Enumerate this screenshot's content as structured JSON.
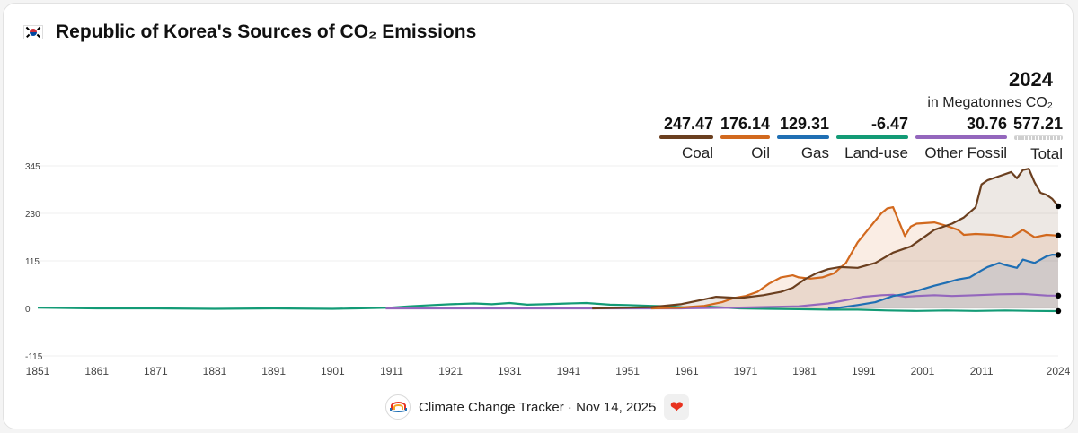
{
  "header": {
    "title": "Republic of Korea's Sources of CO₂ Emissions",
    "flag_icon": "south-korea-flag-icon"
  },
  "legend": {
    "year": "2024",
    "unit": "in Megatonnes CO₂",
    "items": [
      {
        "name": "Coal",
        "value": "247.47",
        "color": "#6b3f1f"
      },
      {
        "name": "Oil",
        "value": "176.14",
        "color": "#d2691e"
      },
      {
        "name": "Gas",
        "value": "129.31",
        "color": "#1f6fb4"
      },
      {
        "name": "Land-use",
        "value": "-6.47",
        "color": "#139b76"
      },
      {
        "name": "Other Fossil",
        "value": "30.76",
        "color": "#9467bd"
      },
      {
        "name": "Total",
        "value": "577.21",
        "color": "#cccccc"
      }
    ]
  },
  "footer": {
    "text": "Climate Change Tracker · Nov 14, 2025",
    "logo_icon": "climate-change-tracker-logo-icon",
    "heart_icon": "heart-icon",
    "heart_glyph": "❤"
  },
  "chart_data": {
    "type": "area",
    "title": "Republic of Korea's Sources of CO₂ Emissions",
    "ylabel": "",
    "xlabel": "",
    "xlim": [
      1851,
      2024
    ],
    "ylim": [
      -115,
      345
    ],
    "yticks": [
      -115,
      0,
      115,
      230,
      345
    ],
    "xticks": [
      1851,
      1861,
      1871,
      1881,
      1891,
      1901,
      1911,
      1921,
      1931,
      1941,
      1951,
      1961,
      1971,
      1981,
      1991,
      2001,
      2011,
      2024
    ],
    "series": [
      {
        "name": "Coal",
        "color": "#6b3f1f",
        "fill": true,
        "points": [
          [
            1945,
            0
          ],
          [
            1955,
            3
          ],
          [
            1960,
            10
          ],
          [
            1964,
            22
          ],
          [
            1966,
            28
          ],
          [
            1970,
            25
          ],
          [
            1974,
            32
          ],
          [
            1977,
            40
          ],
          [
            1979,
            50
          ],
          [
            1981,
            70
          ],
          [
            1983,
            85
          ],
          [
            1985,
            95
          ],
          [
            1987,
            100
          ],
          [
            1990,
            98
          ],
          [
            1993,
            110
          ],
          [
            1996,
            135
          ],
          [
            1999,
            150
          ],
          [
            2001,
            170
          ],
          [
            2003,
            190
          ],
          [
            2006,
            205
          ],
          [
            2008,
            220
          ],
          [
            2010,
            245
          ],
          [
            2011,
            300
          ],
          [
            2012,
            310
          ],
          [
            2014,
            320
          ],
          [
            2016,
            330
          ],
          [
            2017,
            315
          ],
          [
            2018,
            335
          ],
          [
            2019,
            338
          ],
          [
            2020,
            305
          ],
          [
            2021,
            280
          ],
          [
            2022,
            275
          ],
          [
            2023,
            265
          ],
          [
            2024,
            247.47
          ]
        ]
      },
      {
        "name": "Oil",
        "color": "#d2691e",
        "fill": true,
        "points": [
          [
            1955,
            0
          ],
          [
            1960,
            2
          ],
          [
            1964,
            6
          ],
          [
            1967,
            15
          ],
          [
            1969,
            25
          ],
          [
            1971,
            30
          ],
          [
            1973,
            40
          ],
          [
            1975,
            60
          ],
          [
            1977,
            75
          ],
          [
            1979,
            80
          ],
          [
            1980,
            75
          ],
          [
            1982,
            72
          ],
          [
            1984,
            75
          ],
          [
            1986,
            85
          ],
          [
            1988,
            110
          ],
          [
            1990,
            160
          ],
          [
            1992,
            195
          ],
          [
            1994,
            230
          ],
          [
            1995,
            242
          ],
          [
            1996,
            245
          ],
          [
            1997,
            210
          ],
          [
            1998,
            175
          ],
          [
            1999,
            198
          ],
          [
            2000,
            205
          ],
          [
            2003,
            208
          ],
          [
            2005,
            200
          ],
          [
            2007,
            190
          ],
          [
            2008,
            178
          ],
          [
            2010,
            180
          ],
          [
            2013,
            178
          ],
          [
            2016,
            172
          ],
          [
            2018,
            190
          ],
          [
            2020,
            172
          ],
          [
            2022,
            178
          ],
          [
            2024,
            176.14
          ]
        ]
      },
      {
        "name": "Gas",
        "color": "#1f6fb4",
        "fill": true,
        "points": [
          [
            1985,
            0
          ],
          [
            1987,
            2
          ],
          [
            1990,
            8
          ],
          [
            1993,
            15
          ],
          [
            1996,
            30
          ],
          [
            1998,
            35
          ],
          [
            2000,
            42
          ],
          [
            2003,
            55
          ],
          [
            2005,
            62
          ],
          [
            2007,
            70
          ],
          [
            2009,
            75
          ],
          [
            2011,
            92
          ],
          [
            2012,
            100
          ],
          [
            2014,
            110
          ],
          [
            2015,
            105
          ],
          [
            2017,
            98
          ],
          [
            2018,
            118
          ],
          [
            2020,
            110
          ],
          [
            2022,
            126
          ],
          [
            2023,
            130
          ],
          [
            2024,
            129.31
          ]
        ]
      },
      {
        "name": "Other Fossil",
        "color": "#9467bd",
        "fill": false,
        "points": [
          [
            1910,
            0
          ],
          [
            1960,
            0
          ],
          [
            1970,
            2
          ],
          [
            1980,
            5
          ],
          [
            1985,
            12
          ],
          [
            1988,
            20
          ],
          [
            1991,
            28
          ],
          [
            1994,
            32
          ],
          [
            1996,
            33
          ],
          [
            1998,
            28
          ],
          [
            2000,
            30
          ],
          [
            2003,
            32
          ],
          [
            2006,
            30
          ],
          [
            2010,
            32
          ],
          [
            2014,
            34
          ],
          [
            2018,
            35
          ],
          [
            2022,
            31
          ],
          [
            2024,
            30.76
          ]
        ]
      },
      {
        "name": "Land-use",
        "color": "#139b76",
        "fill": false,
        "points": [
          [
            1851,
            2
          ],
          [
            1861,
            0
          ],
          [
            1871,
            0
          ],
          [
            1881,
            -1
          ],
          [
            1891,
            0
          ],
          [
            1901,
            -1
          ],
          [
            1905,
            0
          ],
          [
            1911,
            2
          ],
          [
            1914,
            5
          ],
          [
            1918,
            8
          ],
          [
            1921,
            10
          ],
          [
            1925,
            12
          ],
          [
            1928,
            10
          ],
          [
            1931,
            13
          ],
          [
            1934,
            9
          ],
          [
            1937,
            10
          ],
          [
            1941,
            12
          ],
          [
            1944,
            13
          ],
          [
            1948,
            9
          ],
          [
            1951,
            8
          ],
          [
            1955,
            6
          ],
          [
            1958,
            5
          ],
          [
            1961,
            2
          ],
          [
            1964,
            5
          ],
          [
            1966,
            3
          ],
          [
            1970,
            0
          ],
          [
            1975,
            -1
          ],
          [
            1980,
            -2
          ],
          [
            1985,
            -3
          ],
          [
            1990,
            -3
          ],
          [
            1995,
            -5
          ],
          [
            2000,
            -6
          ],
          [
            2005,
            -5
          ],
          [
            2010,
            -6
          ],
          [
            2015,
            -5
          ],
          [
            2020,
            -6
          ],
          [
            2024,
            -6.47
          ]
        ]
      }
    ]
  }
}
